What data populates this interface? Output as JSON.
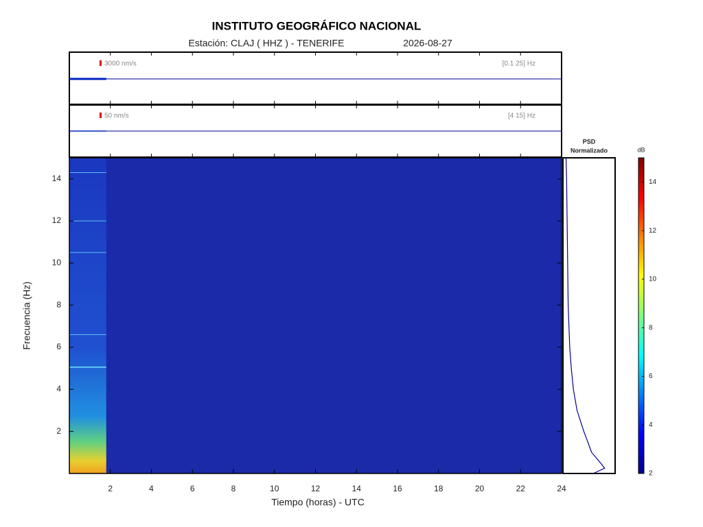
{
  "chart_data": {
    "type": "spectrogram",
    "title": "INSTITUTO GEOGRÁFICO NACIONAL",
    "station": "Estación:  CLAJ ( HHZ ) - TENERIFE",
    "date": "2026-08-27",
    "traces": [
      {
        "scale": "3000 nm/s",
        "band": "[0.1 25] Hz"
      },
      {
        "scale": "50 nm/s",
        "band": "[4 15] Hz"
      }
    ],
    "x_label": "Tiempo (horas) - UTC",
    "y_label": "Frecuencia  (Hz)",
    "xlim": [
      0,
      24
    ],
    "xticks": [
      2,
      4,
      6,
      8,
      10,
      12,
      14,
      16,
      18,
      20,
      22,
      24
    ],
    "ylim": [
      0,
      15
    ],
    "yticks": [
      2,
      4,
      6,
      8,
      10,
      12,
      14
    ],
    "data_until": 1.8,
    "psd_title": [
      "PSD",
      "Normalizado"
    ],
    "psd_xlim": [
      0,
      1
    ],
    "psd_freq": [
      0,
      0.25,
      0.5,
      1,
      2,
      3,
      4,
      5,
      6,
      8,
      10,
      12,
      14,
      15
    ],
    "psd_values": [
      0.58,
      0.8,
      0.72,
      0.55,
      0.4,
      0.27,
      0.2,
      0.16,
      0.13,
      0.1,
      0.09,
      0.08,
      0.07,
      0.06
    ],
    "colorbar_label": "dB",
    "clim": [
      2,
      15
    ],
    "cticks": [
      2,
      4,
      6,
      8,
      10,
      12,
      14
    ]
  }
}
